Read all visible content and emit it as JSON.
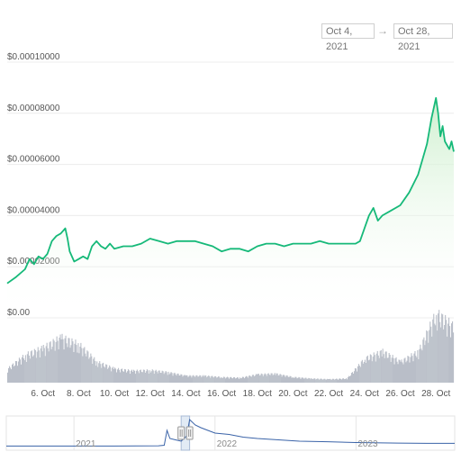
{
  "range_selector": {
    "from": "Oct 4, 2021",
    "arrow": "→",
    "to": "Oct 28, 2021"
  },
  "colors": {
    "price_line": "#16b979",
    "area_fill_top": "#c9eec9",
    "volume_bar": "#b9bec8",
    "navigator_line": "#3a63a8",
    "navigator_window": "#d6e2f1"
  },
  "chart_data": {
    "type": "line",
    "currency_prefix": "$",
    "ylim": [
      0,
      0.0001
    ],
    "y_ticks": [
      "$0.00",
      "$0.00002000",
      "$0.00004000",
      "$0.00006000",
      "$0.00008000",
      "$0.00010000"
    ],
    "y_tick_values": [
      0,
      2e-05,
      4e-05,
      6e-05,
      8e-05,
      0.0001
    ],
    "x_range": [
      "2021-10-04",
      "2021-10-28"
    ],
    "x_ticks": [
      "6. Oct",
      "8. Oct",
      "10. Oct",
      "12. Oct",
      "14. Oct",
      "16. Oct",
      "18. Oct",
      "20. Oct",
      "22. Oct",
      "24. Oct",
      "26. Oct",
      "28. Oct"
    ],
    "x_tick_dates": [
      "2021-10-06",
      "2021-10-08",
      "2021-10-10",
      "2021-10-12",
      "2021-10-14",
      "2021-10-16",
      "2021-10-18",
      "2021-10-20",
      "2021-10-22",
      "2021-10-24",
      "2021-10-26",
      "2021-10-28"
    ],
    "grid": true,
    "series": [
      {
        "points": [
          [
            "2021-10-04T00:00",
            1.35e-05
          ],
          [
            "2021-10-04T12:00",
            1.6e-05
          ],
          [
            "2021-10-05T00:00",
            1.9e-05
          ],
          [
            "2021-10-05T06:00",
            2.3e-05
          ],
          [
            "2021-10-05T12:00",
            2.1e-05
          ],
          [
            "2021-10-05T18:00",
            2.4e-05
          ],
          [
            "2021-10-06T00:00",
            2.3e-05
          ],
          [
            "2021-10-06T06:00",
            2.5e-05
          ],
          [
            "2021-10-06T12:00",
            3e-05
          ],
          [
            "2021-10-06T18:00",
            3.2e-05
          ],
          [
            "2021-10-07T00:00",
            3.3e-05
          ],
          [
            "2021-10-07T06:00",
            3.5e-05
          ],
          [
            "2021-10-07T09:00",
            3.1e-05
          ],
          [
            "2021-10-07T12:00",
            2.6e-05
          ],
          [
            "2021-10-07T18:00",
            2.2e-05
          ],
          [
            "2021-10-08T00:00",
            2.3e-05
          ],
          [
            "2021-10-08T06:00",
            2.4e-05
          ],
          [
            "2021-10-08T12:00",
            2.3e-05
          ],
          [
            "2021-10-08T18:00",
            2.8e-05
          ],
          [
            "2021-10-09T00:00",
            3e-05
          ],
          [
            "2021-10-09T06:00",
            2.8e-05
          ],
          [
            "2021-10-09T12:00",
            2.7e-05
          ],
          [
            "2021-10-09T18:00",
            2.9e-05
          ],
          [
            "2021-10-10T00:00",
            2.7e-05
          ],
          [
            "2021-10-10T12:00",
            2.8e-05
          ],
          [
            "2021-10-11T00:00",
            2.8e-05
          ],
          [
            "2021-10-11T12:00",
            2.9e-05
          ],
          [
            "2021-10-12T00:00",
            3.1e-05
          ],
          [
            "2021-10-12T12:00",
            3e-05
          ],
          [
            "2021-10-13T00:00",
            2.9e-05
          ],
          [
            "2021-10-13T12:00",
            3e-05
          ],
          [
            "2021-10-14T00:00",
            3e-05
          ],
          [
            "2021-10-14T12:00",
            3e-05
          ],
          [
            "2021-10-15T00:00",
            2.9e-05
          ],
          [
            "2021-10-15T12:00",
            2.8e-05
          ],
          [
            "2021-10-16T00:00",
            2.6e-05
          ],
          [
            "2021-10-16T12:00",
            2.7e-05
          ],
          [
            "2021-10-17T00:00",
            2.7e-05
          ],
          [
            "2021-10-17T12:00",
            2.6e-05
          ],
          [
            "2021-10-18T00:00",
            2.8e-05
          ],
          [
            "2021-10-18T12:00",
            2.9e-05
          ],
          [
            "2021-10-19T00:00",
            2.9e-05
          ],
          [
            "2021-10-19T12:00",
            2.8e-05
          ],
          [
            "2021-10-20T00:00",
            2.9e-05
          ],
          [
            "2021-10-20T12:00",
            2.9e-05
          ],
          [
            "2021-10-21T00:00",
            2.9e-05
          ],
          [
            "2021-10-21T12:00",
            3e-05
          ],
          [
            "2021-10-22T00:00",
            2.9e-05
          ],
          [
            "2021-10-22T12:00",
            2.9e-05
          ],
          [
            "2021-10-23T00:00",
            2.9e-05
          ],
          [
            "2021-10-23T12:00",
            2.9e-05
          ],
          [
            "2021-10-23T18:00",
            3e-05
          ],
          [
            "2021-10-24T00:00",
            3.5e-05
          ],
          [
            "2021-10-24T06:00",
            4e-05
          ],
          [
            "2021-10-24T12:00",
            4.3e-05
          ],
          [
            "2021-10-24T18:00",
            3.8e-05
          ],
          [
            "2021-10-25T00:00",
            4e-05
          ],
          [
            "2021-10-25T12:00",
            4.2e-05
          ],
          [
            "2021-10-26T00:00",
            4.4e-05
          ],
          [
            "2021-10-26T12:00",
            4.9e-05
          ],
          [
            "2021-10-27T00:00",
            5.6e-05
          ],
          [
            "2021-10-27T06:00",
            6.2e-05
          ],
          [
            "2021-10-27T12:00",
            6.8e-05
          ],
          [
            "2021-10-27T18:00",
            7.8e-05
          ],
          [
            "2021-10-28T00:00",
            8.6e-05
          ],
          [
            "2021-10-28T03:00",
            8e-05
          ],
          [
            "2021-10-28T06:00",
            7.1e-05
          ],
          [
            "2021-10-28T09:00",
            7.5e-05
          ],
          [
            "2021-10-28T12:00",
            6.9e-05
          ],
          [
            "2021-10-28T18:00",
            6.6e-05
          ],
          [
            "2021-10-28T21:00",
            6.9e-05
          ],
          [
            "2021-10-29T00:00",
            6.5e-05
          ]
        ]
      }
    ],
    "volume": {
      "points": [
        [
          "2021-10-04",
          0.2
        ],
        [
          "2021-10-05",
          0.4
        ],
        [
          "2021-10-06",
          0.5
        ],
        [
          "2021-10-07",
          0.65
        ],
        [
          "2021-10-08",
          0.55
        ],
        [
          "2021-10-09",
          0.3
        ],
        [
          "2021-10-10",
          0.2
        ],
        [
          "2021-10-11",
          0.17
        ],
        [
          "2021-10-12",
          0.18
        ],
        [
          "2021-10-13",
          0.15
        ],
        [
          "2021-10-14",
          0.1
        ],
        [
          "2021-10-15",
          0.1
        ],
        [
          "2021-10-16",
          0.08
        ],
        [
          "2021-10-17",
          0.07
        ],
        [
          "2021-10-18",
          0.12
        ],
        [
          "2021-10-19",
          0.13
        ],
        [
          "2021-10-20",
          0.08
        ],
        [
          "2021-10-21",
          0.06
        ],
        [
          "2021-10-22",
          0.05
        ],
        [
          "2021-10-23",
          0.06
        ],
        [
          "2021-10-24",
          0.35
        ],
        [
          "2021-10-25",
          0.45
        ],
        [
          "2021-10-26",
          0.3
        ],
        [
          "2021-10-27",
          0.45
        ],
        [
          "2021-10-28",
          1.0
        ],
        [
          "2021-10-29",
          0.8
        ]
      ]
    },
    "navigator": {
      "x_ticks": [
        "2021",
        "2022",
        "2023"
      ],
      "x_tick_years": [
        2021,
        2022,
        2023
      ],
      "x_range_years": [
        2020.52,
        2023.7
      ],
      "selected_window_years": [
        2021.76,
        2021.82
      ],
      "points": [
        [
          2020.52,
          0.02
        ],
        [
          2021.2,
          0.02
        ],
        [
          2021.6,
          0.03
        ],
        [
          2021.64,
          0.05
        ],
        [
          2021.66,
          0.6
        ],
        [
          2021.68,
          0.3
        ],
        [
          2021.72,
          0.25
        ],
        [
          2021.76,
          0.2
        ],
        [
          2021.8,
          0.4
        ],
        [
          2021.82,
          1.0
        ],
        [
          2021.86,
          0.8
        ],
        [
          2021.9,
          0.7
        ],
        [
          2021.95,
          0.6
        ],
        [
          2022.0,
          0.5
        ],
        [
          2022.1,
          0.45
        ],
        [
          2022.2,
          0.35
        ],
        [
          2022.3,
          0.3
        ],
        [
          2022.45,
          0.25
        ],
        [
          2022.6,
          0.2
        ],
        [
          2022.8,
          0.18
        ],
        [
          2023.0,
          0.15
        ],
        [
          2023.3,
          0.13
        ],
        [
          2023.5,
          0.12
        ],
        [
          2023.7,
          0.12
        ]
      ]
    }
  }
}
